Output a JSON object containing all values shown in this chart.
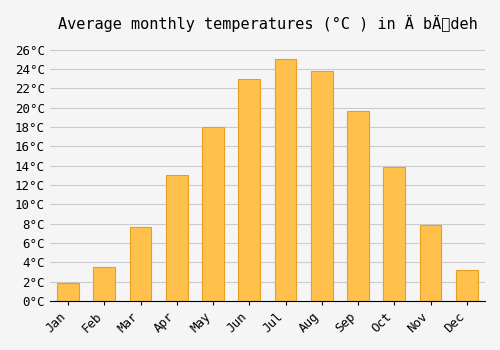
{
  "title": "Average monthly temperatures (°C ) in Ä bÄdeh",
  "months": [
    "Jan",
    "Feb",
    "Mar",
    "Apr",
    "May",
    "Jun",
    "Jul",
    "Aug",
    "Sep",
    "Oct",
    "Nov",
    "Dec"
  ],
  "values": [
    1.8,
    3.5,
    7.7,
    13.0,
    18.0,
    23.0,
    25.0,
    23.8,
    19.7,
    13.9,
    7.9,
    3.2
  ],
  "bar_color": "#FFC04C",
  "bar_edge_color": "#E8A020",
  "ylim": [
    0,
    27
  ],
  "yticks": [
    0,
    2,
    4,
    6,
    8,
    10,
    12,
    14,
    16,
    18,
    20,
    22,
    24,
    26
  ],
  "ytick_labels": [
    "0°C",
    "2°C",
    "4°C",
    "6°C",
    "8°C",
    "10°C",
    "12°C",
    "14°C",
    "16°C",
    "18°C",
    "20°C",
    "22°C",
    "24°C",
    "26°C"
  ],
  "background_color": "#F5F5F5",
  "grid_color": "#CCCCCC",
  "font_family": "monospace",
  "title_fontsize": 11,
  "tick_fontsize": 9
}
